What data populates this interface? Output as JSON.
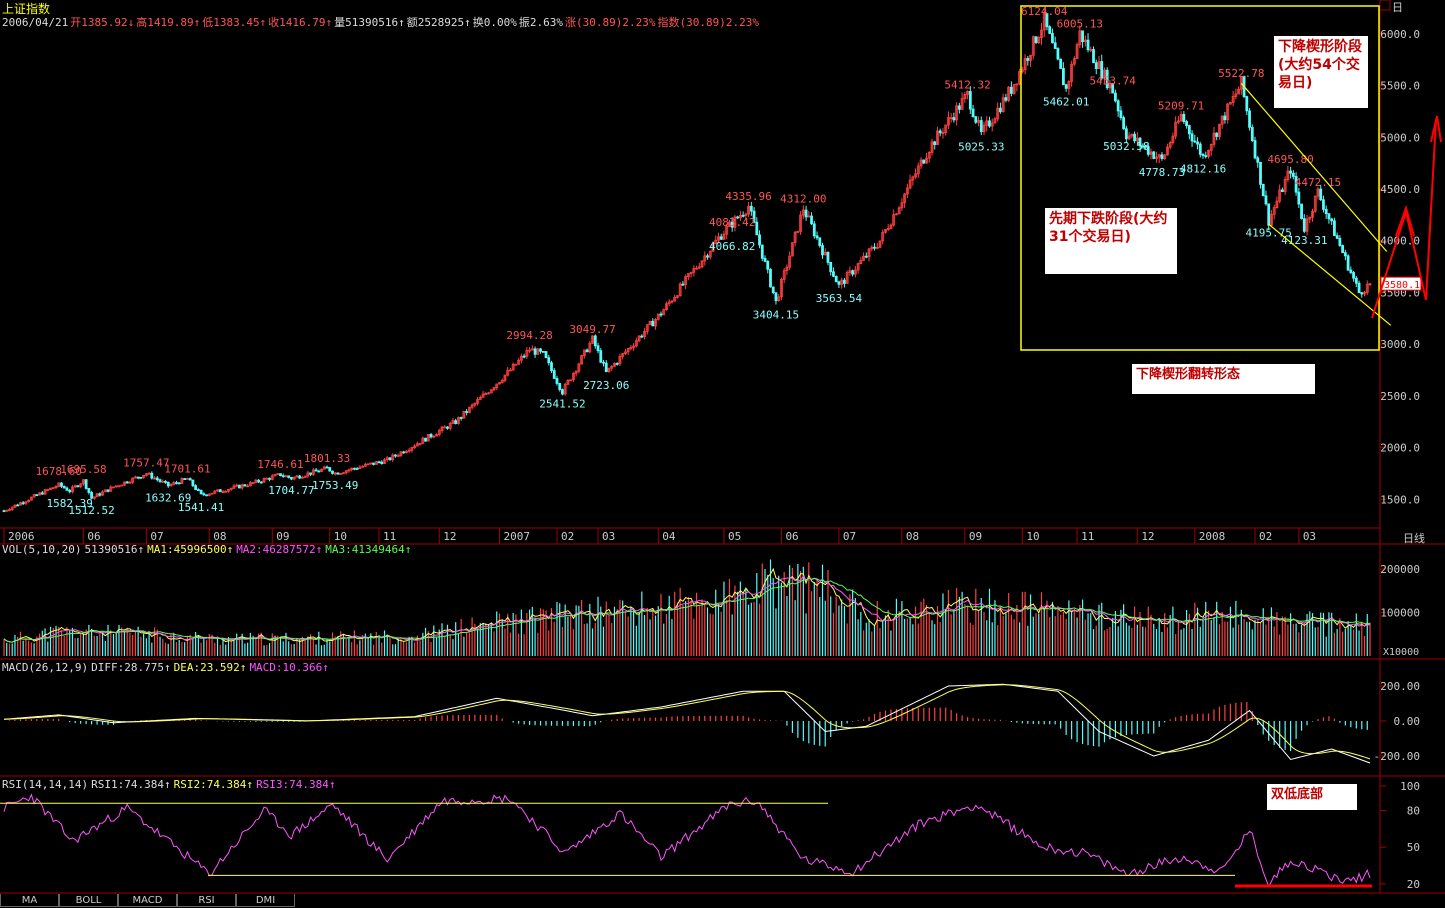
{
  "header": {
    "title": "上证指数",
    "info": [
      {
        "text": "2006/04/21",
        "color": "#dddddd"
      },
      {
        "text": "开1385.92↓",
        "color": "#ff5555"
      },
      {
        "text": "高1419.89↑",
        "color": "#ff5555"
      },
      {
        "text": "低1383.45↑",
        "color": "#ff5555"
      },
      {
        "text": "收1416.79↑",
        "color": "#ff5555"
      },
      {
        "text": "量51390516↑",
        "color": "#dddddd"
      },
      {
        "text": "额2528925↑",
        "color": "#dddddd"
      },
      {
        "text": "换0.00%",
        "color": "#dddddd"
      },
      {
        "text": "振2.63%",
        "color": "#dddddd"
      },
      {
        "text": "涨(30.89)2.23%",
        "color": "#ff5555"
      },
      {
        "text": "指数(30.89)2.23%",
        "color": "#ff5555"
      }
    ],
    "period_label": "日线",
    "price_top_label": "日"
  },
  "annotations": {
    "wedge_stage": "下降楔形阶段(大约54个交易日)",
    "prior_decline": "先期下跌阶段(大约31个交易日)",
    "pattern_name": "下降楔形翻转形态",
    "double_bottom": "双低底部"
  },
  "indicators": {
    "vol": [
      {
        "text": "VOL(5,10,20)",
        "color": "#dddddd"
      },
      {
        "text": "51390516↑",
        "color": "#dddddd"
      },
      {
        "text": "MA1:45996500↑",
        "color": "#ffff55"
      },
      {
        "text": "MA2:46287572↑",
        "color": "#ff55ff"
      },
      {
        "text": "MA3:41349464↑",
        "color": "#55ff55"
      }
    ],
    "macd": [
      {
        "text": "MACD(26,12,9)",
        "color": "#dddddd"
      },
      {
        "text": "DIFF:28.775↑",
        "color": "#dddddd"
      },
      {
        "text": "DEA:23.592↑",
        "color": "#ffff55"
      },
      {
        "text": "MACD:10.366↑",
        "color": "#ff55ff"
      }
    ],
    "rsi": [
      {
        "text": "RSI(14,14,14)",
        "color": "#dddddd"
      },
      {
        "text": "RSI1:74.384↑",
        "color": "#dddddd"
      },
      {
        "text": "RSI2:74.384↑",
        "color": "#ffff55"
      },
      {
        "text": "RSI3:74.384↑",
        "color": "#ff55ff"
      }
    ]
  },
  "tabs": [
    "MA",
    "BOLL",
    "MACD",
    "RSI",
    "DMI"
  ],
  "chart_data": {
    "type": "candlestick",
    "ylim": [
      1300,
      6250
    ],
    "price_ticks": [
      1500,
      2000,
      2500,
      3000,
      3500,
      4000,
      4500,
      5000,
      5500,
      6000
    ],
    "price_tick_labels": [
      "1500.0",
      "2000.0",
      "2500.0",
      "3000.0",
      "3500.0",
      "4000.0",
      "4500.0",
      "5000.0",
      "5500.0",
      "6000.0"
    ],
    "current_price_label": "3580.1",
    "months": [
      {
        "label": "2006",
        "i": 0
      },
      {
        "label": "06",
        "i": 29
      },
      {
        "label": "07",
        "i": 52
      },
      {
        "label": "08",
        "i": 75
      },
      {
        "label": "09",
        "i": 98
      },
      {
        "label": "10",
        "i": 119
      },
      {
        "label": "11",
        "i": 137
      },
      {
        "label": "12",
        "i": 159
      },
      {
        "label": "2007",
        "i": 181
      },
      {
        "label": "02",
        "i": 202
      },
      {
        "label": "03",
        "i": 217
      },
      {
        "label": "04",
        "i": 239
      },
      {
        "label": "05",
        "i": 263
      },
      {
        "label": "06",
        "i": 284
      },
      {
        "label": "07",
        "i": 305
      },
      {
        "label": "08",
        "i": 328
      },
      {
        "label": "09",
        "i": 351
      },
      {
        "label": "10",
        "i": 372
      },
      {
        "label": "11",
        "i": 392
      },
      {
        "label": "12",
        "i": 414
      },
      {
        "label": "2008",
        "i": 435
      },
      {
        "label": "02",
        "i": 457
      },
      {
        "label": "03",
        "i": 473
      }
    ],
    "path": [
      [
        0,
        1390
      ],
      [
        20,
        1640
      ],
      [
        24,
        1582
      ],
      [
        29,
        1680
      ],
      [
        32,
        1512
      ],
      [
        40,
        1620
      ],
      [
        52,
        1750
      ],
      [
        60,
        1632
      ],
      [
        67,
        1700
      ],
      [
        72,
        1541
      ],
      [
        90,
        1650
      ],
      [
        101,
        1740
      ],
      [
        105,
        1704
      ],
      [
        118,
        1800
      ],
      [
        121,
        1753
      ],
      [
        140,
        1880
      ],
      [
        165,
        2250
      ],
      [
        185,
        2750
      ],
      [
        192,
        2950
      ],
      [
        197,
        2900
      ],
      [
        204,
        2541
      ],
      [
        215,
        3049
      ],
      [
        220,
        2723
      ],
      [
        240,
        3300
      ],
      [
        262,
        4060
      ],
      [
        272,
        4335
      ],
      [
        282,
        3404
      ],
      [
        292,
        4312
      ],
      [
        305,
        3563
      ],
      [
        320,
        4000
      ],
      [
        338,
        4900
      ],
      [
        352,
        5412
      ],
      [
        357,
        5025
      ],
      [
        368,
        5470
      ],
      [
        380,
        6124
      ],
      [
        388,
        5462
      ],
      [
        393,
        6005
      ],
      [
        405,
        5453
      ],
      [
        410,
        5032
      ],
      [
        423,
        4778
      ],
      [
        430,
        5209
      ],
      [
        438,
        4812
      ],
      [
        452,
        5522
      ],
      [
        462,
        4195
      ],
      [
        470,
        4695
      ],
      [
        475,
        4123
      ],
      [
        480,
        4472
      ],
      [
        495,
        3500
      ],
      [
        499,
        3580
      ]
    ],
    "price_labels": [
      {
        "t": "1678.60",
        "i": 20,
        "v": 1678.6,
        "dir": "up"
      },
      {
        "t": "1582.39",
        "i": 24,
        "v": 1582.39,
        "dir": "down"
      },
      {
        "t": "1695.58",
        "i": 29,
        "v": 1695.58,
        "dir": "up"
      },
      {
        "t": "1512.52",
        "i": 32,
        "v": 1512.52,
        "dir": "down"
      },
      {
        "t": "1757.47",
        "i": 52,
        "v": 1757.47,
        "dir": "up"
      },
      {
        "t": "1632.69",
        "i": 60,
        "v": 1632.69,
        "dir": "down"
      },
      {
        "t": "1701.61",
        "i": 67,
        "v": 1701.61,
        "dir": "up"
      },
      {
        "t": "1541.41",
        "i": 72,
        "v": 1541.41,
        "dir": "down"
      },
      {
        "t": "1746.61",
        "i": 101,
        "v": 1746.61,
        "dir": "up"
      },
      {
        "t": "1704.77",
        "i": 105,
        "v": 1704.77,
        "dir": "down"
      },
      {
        "t": "1801.33",
        "i": 118,
        "v": 1801.33,
        "dir": "up"
      },
      {
        "t": "1753.49",
        "i": 121,
        "v": 1753.49,
        "dir": "down"
      },
      {
        "t": "2994.28",
        "i": 192,
        "v": 2994.28,
        "dir": "up"
      },
      {
        "t": "2541.52",
        "i": 204,
        "v": 2541.52,
        "dir": "down"
      },
      {
        "t": "3049.77",
        "i": 215,
        "v": 3049.77,
        "dir": "up"
      },
      {
        "t": "2723.06",
        "i": 220,
        "v": 2723.06,
        "dir": "down"
      },
      {
        "t": "4083.42",
        "i": 266,
        "v": 4083.42,
        "dir": "up"
      },
      {
        "t": "4066.82",
        "i": 266,
        "v": 4066.82,
        "dir": "down"
      },
      {
        "t": "4335.96",
        "i": 272,
        "v": 4335.96,
        "dir": "up"
      },
      {
        "t": "3404.15",
        "i": 282,
        "v": 3404.15,
        "dir": "down"
      },
      {
        "t": "4312.00",
        "i": 292,
        "v": 4312.0,
        "dir": "up"
      },
      {
        "t": "3563.54",
        "i": 305,
        "v": 3563.54,
        "dir": "down"
      },
      {
        "t": "5412.32",
        "i": 352,
        "v": 5412.32,
        "dir": "up"
      },
      {
        "t": "5025.33",
        "i": 357,
        "v": 5025.33,
        "dir": "down"
      },
      {
        "t": "6124.04",
        "i": 380,
        "v": 6124.04,
        "dir": "up"
      },
      {
        "t": "6005.13",
        "i": 393,
        "v": 6005.13,
        "dir": "up"
      },
      {
        "t": "5462.01",
        "i": 388,
        "v": 5462.01,
        "dir": "down"
      },
      {
        "t": "5453.74",
        "i": 405,
        "v": 5453.74,
        "dir": "up"
      },
      {
        "t": "5032.58",
        "i": 410,
        "v": 5032.58,
        "dir": "down"
      },
      {
        "t": "4778.73",
        "i": 423,
        "v": 4778.73,
        "dir": "down"
      },
      {
        "t": "5209.71",
        "i": 430,
        "v": 5209.71,
        "dir": "up"
      },
      {
        "t": "4812.16",
        "i": 438,
        "v": 4812.16,
        "dir": "down"
      },
      {
        "t": "5522.78",
        "i": 452,
        "v": 5522.78,
        "dir": "up"
      },
      {
        "t": "4195.75",
        "i": 462,
        "v": 4195.75,
        "dir": "down"
      },
      {
        "t": "4695.80",
        "i": 470,
        "v": 4695.8,
        "dir": "up"
      },
      {
        "t": "4123.31",
        "i": 475,
        "v": 4123.31,
        "dir": "down"
      },
      {
        "t": "4472.15",
        "i": 480,
        "v": 4472.15,
        "dir": "up"
      }
    ],
    "wedge_upper": [
      [
        452,
        5522
      ],
      [
        500,
        3780
      ]
    ],
    "wedge_lower": [
      [
        462,
        4160
      ],
      [
        500,
        3240
      ]
    ],
    "vol_ylim": [
      0,
      230000
    ],
    "vol_ticks": [
      100000,
      200000
    ],
    "vol_tick_labels": [
      "100000",
      "200000"
    ],
    "vol_unit": "X10000",
    "vol_path": [
      [
        0,
        35000
      ],
      [
        20,
        55000
      ],
      [
        50,
        50000
      ],
      [
        80,
        38000
      ],
      [
        110,
        40000
      ],
      [
        150,
        45000
      ],
      [
        180,
        75000
      ],
      [
        210,
        95000
      ],
      [
        240,
        110000
      ],
      [
        270,
        135000
      ],
      [
        285,
        175000
      ],
      [
        300,
        150000
      ],
      [
        315,
        90000
      ],
      [
        340,
        110000
      ],
      [
        360,
        115000
      ],
      [
        390,
        100000
      ],
      [
        420,
        80000
      ],
      [
        450,
        95000
      ],
      [
        470,
        75000
      ],
      [
        499,
        70000
      ]
    ],
    "macd_ylim": [
      -280,
      280
    ],
    "macd_ticks": [
      200,
      0,
      -200
    ],
    "macd_tick_labels": [
      "200.00",
      "0.00",
      "-200.00"
    ],
    "macd_path": [
      [
        0,
        10
      ],
      [
        20,
        35
      ],
      [
        40,
        -10
      ],
      [
        70,
        15
      ],
      [
        110,
        0
      ],
      [
        150,
        25
      ],
      [
        180,
        130
      ],
      [
        205,
        60
      ],
      [
        215,
        30
      ],
      [
        240,
        80
      ],
      [
        270,
        170
      ],
      [
        285,
        170
      ],
      [
        300,
        -60
      ],
      [
        315,
        -30
      ],
      [
        345,
        200
      ],
      [
        365,
        210
      ],
      [
        385,
        170
      ],
      [
        400,
        -60
      ],
      [
        420,
        -200
      ],
      [
        440,
        -110
      ],
      [
        455,
        60
      ],
      [
        470,
        -220
      ],
      [
        485,
        -160
      ],
      [
        499,
        -240
      ]
    ],
    "rsi_ylim": [
      15,
      105
    ],
    "rsi_ticks": [
      20,
      50,
      80,
      100
    ],
    "rsi_tick_labels": [
      "20",
      "50",
      "80",
      "100"
    ],
    "rsi_path": [
      [
        0,
        82
      ],
      [
        10,
        92
      ],
      [
        25,
        55
      ],
      [
        45,
        82
      ],
      [
        75,
        28
      ],
      [
        95,
        80
      ],
      [
        105,
        60
      ],
      [
        120,
        85
      ],
      [
        140,
        40
      ],
      [
        160,
        88
      ],
      [
        185,
        90
      ],
      [
        205,
        45
      ],
      [
        225,
        78
      ],
      [
        240,
        42
      ],
      [
        265,
        85
      ],
      [
        275,
        88
      ],
      [
        292,
        40
      ],
      [
        310,
        30
      ],
      [
        335,
        70
      ],
      [
        355,
        85
      ],
      [
        380,
        50
      ],
      [
        395,
        45
      ],
      [
        410,
        28
      ],
      [
        430,
        42
      ],
      [
        445,
        30
      ],
      [
        455,
        64
      ],
      [
        462,
        20
      ],
      [
        470,
        40
      ],
      [
        490,
        22
      ],
      [
        499,
        28
      ]
    ],
    "rsi_upper_line": 86,
    "rsi_lower_line": 27
  }
}
